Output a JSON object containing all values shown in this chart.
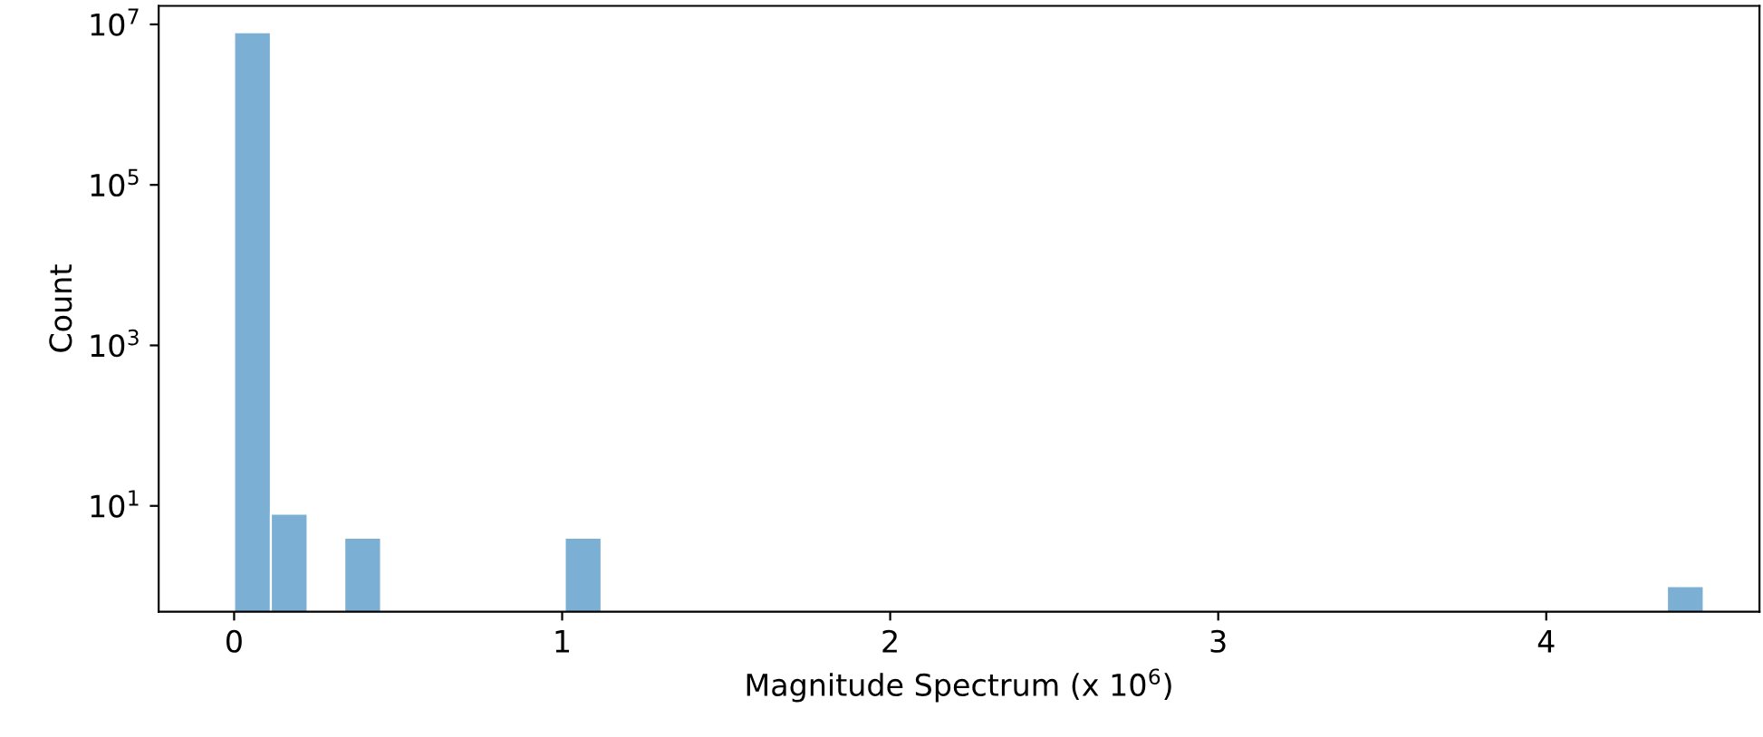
{
  "chart_data": {
    "type": "histogram",
    "xlabel": "Magnitude Spectrum (x 10$^{6}$)",
    "ylabel": "Count",
    "bins": [
      0,
      0.112,
      0.224,
      0.336,
      0.448,
      0.56,
      0.672,
      0.784,
      0.896,
      1.008,
      1.12,
      1.232,
      1.344,
      1.456,
      1.568,
      1.68,
      1.792,
      1.904,
      2.016,
      2.128,
      2.24,
      2.352,
      2.464,
      2.576,
      2.688,
      2.8,
      2.912,
      3.024,
      3.136,
      3.248,
      3.36,
      3.472,
      3.584,
      3.696,
      3.808,
      3.92,
      4.032,
      4.144,
      4.256,
      4.368,
      4.48
    ],
    "values": [
      8000000,
      8,
      null,
      4,
      null,
      null,
      null,
      null,
      null,
      4,
      null,
      null,
      null,
      null,
      null,
      null,
      null,
      null,
      null,
      null,
      null,
      null,
      null,
      null,
      null,
      null,
      null,
      null,
      null,
      null,
      null,
      null,
      null,
      null,
      null,
      null,
      null,
      null,
      null,
      1
    ],
    "color": "#7bafd4",
    "log": "y",
    "grid": false,
    "xlim": [
      -0.23,
      4.65
    ],
    "xticks": [
      0,
      1,
      2,
      3,
      4
    ],
    "ylim": [
      0.48,
      17000000
    ],
    "yticks": [
      {
        "value": 10,
        "label": "10$^{1}$"
      },
      {
        "value": 1000,
        "label": "10$^{3}$"
      },
      {
        "value": 100000,
        "label": "10$^{5}$"
      },
      {
        "value": 10000000,
        "label": "10$^{7}$"
      }
    ]
  }
}
